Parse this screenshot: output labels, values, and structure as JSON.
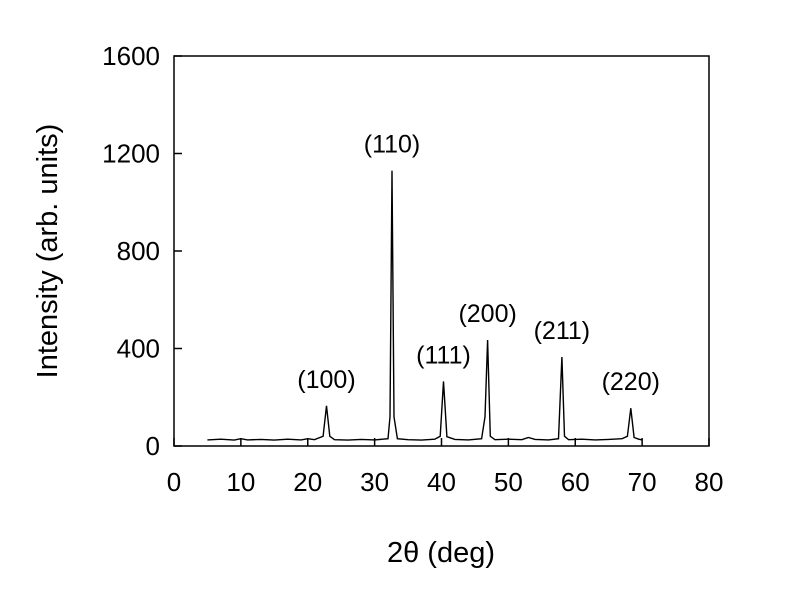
{
  "chart_data": {
    "type": "line",
    "title": "",
    "xlabel": "2θ (deg)",
    "ylabel": "Intensity (arb. units)",
    "xlim": [
      0,
      80
    ],
    "ylim": [
      0,
      1600
    ],
    "xticks": [
      0,
      10,
      20,
      30,
      40,
      50,
      60,
      70,
      80
    ],
    "yticks": [
      0,
      400,
      800,
      1200,
      1600
    ],
    "grid": false,
    "legend": "none",
    "line_color": "#000000",
    "series": [
      {
        "x": [
          5,
          7,
          9,
          10,
          11,
          13,
          15,
          17,
          19,
          20,
          21,
          22.3,
          22.8,
          23.3,
          24,
          26,
          28,
          30,
          32,
          32.3,
          32.6,
          32.9,
          33.4,
          35,
          37,
          39,
          39.8,
          40.3,
          40.8,
          42,
          44,
          46,
          46.5,
          46.9,
          47.3,
          48,
          50,
          52,
          53,
          54,
          56,
          57.5,
          58,
          58.4,
          59,
          61,
          63,
          65,
          67,
          67.8,
          68.3,
          68.8,
          69.5,
          70
        ],
        "y": [
          25,
          28,
          24,
          30,
          25,
          27,
          24,
          28,
          25,
          30,
          26,
          40,
          165,
          40,
          26,
          24,
          27,
          25,
          30,
          120,
          1130,
          120,
          30,
          26,
          24,
          28,
          40,
          265,
          38,
          27,
          25,
          30,
          120,
          435,
          40,
          26,
          28,
          26,
          35,
          27,
          25,
          30,
          365,
          40,
          26,
          28,
          25,
          27,
          30,
          40,
          155,
          35,
          28,
          25
        ]
      }
    ],
    "annotations": [
      {
        "text": "(100)",
        "x": 22.8,
        "y": 165
      },
      {
        "text": "(110)",
        "x": 32.6,
        "y": 1130
      },
      {
        "text": "(111)",
        "x": 40.3,
        "y": 265
      },
      {
        "text": "(200)",
        "x": 46.9,
        "y": 435
      },
      {
        "text": "(211)",
        "x": 58.0,
        "y": 365
      },
      {
        "text": "(220)",
        "x": 68.3,
        "y": 155
      }
    ]
  }
}
